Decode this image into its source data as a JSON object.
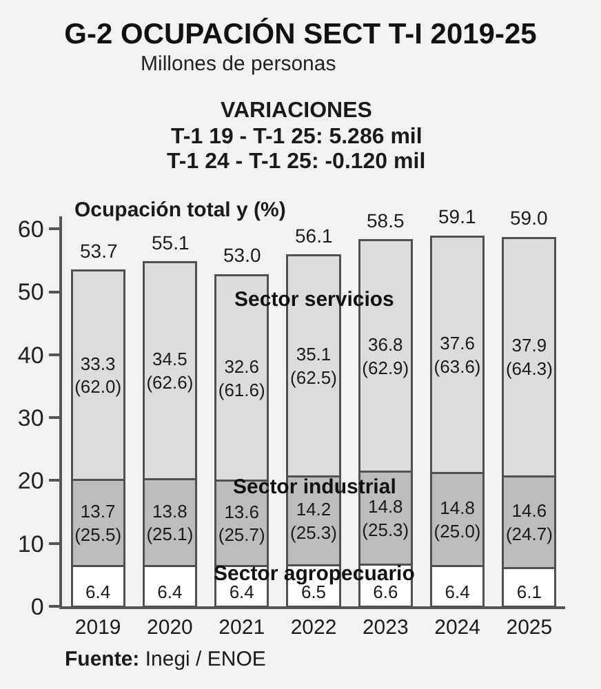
{
  "chart_data": {
    "type": "bar",
    "title": "G-2 OCUPACIÓN SECT T-I 2019-25",
    "subtitle": "Millones de personas",
    "categories": [
      "2019",
      "2020",
      "2021",
      "2022",
      "2023",
      "2024",
      "2025"
    ],
    "stacked": true,
    "series": [
      {
        "name": "Sector agropecuario",
        "color": "#ffffff",
        "values": [
          6.4,
          6.4,
          6.4,
          6.5,
          6.6,
          6.4,
          6.1
        ],
        "value_labels": [
          "6.4",
          "6.4",
          "6.4",
          "6.5",
          "6.6",
          "6.4",
          "6.1"
        ]
      },
      {
        "name": "Sector industrial",
        "color": "#bdbdbd",
        "values": [
          13.7,
          13.8,
          13.6,
          14.2,
          14.8,
          14.8,
          14.6
        ],
        "value_labels": [
          "13.7\n(25.5)",
          "13.8\n(25.1)",
          "13.6\n(25.7)",
          "14.2\n(25.3)",
          "14.8\n(25.3)",
          "14.8\n(25.0)",
          "14.6\n(24.7)"
        ]
      },
      {
        "name": "Sector servicios",
        "color": "#dcdcdc",
        "values": [
          33.3,
          34.5,
          32.6,
          35.1,
          36.8,
          37.6,
          37.9
        ],
        "value_labels": [
          "33.3\n(62.0)",
          "34.5\n(62.6)",
          "32.6\n(61.6)",
          "35.1\n(62.5)",
          "36.8\n(62.9)",
          "37.6\n(63.6)",
          "37.9\n(64.3)"
        ]
      }
    ],
    "ylim": [
      0,
      62
    ],
    "yticks": [
      0,
      10,
      20,
      30,
      40,
      50,
      60
    ],
    "grid": false,
    "legend": false,
    "annotations": [
      "Ocupación total y (%)",
      "VARIACIONES",
      "T-1 19 - T-1 25: 5.286 mil",
      "T-1 24 - T-1 25: -0.120 mil",
      "Fuente: Inegi / ENOE",
      {
        "text": "53.7",
        "x": "2019",
        "y": 53.7
      },
      {
        "text": "55.1",
        "x": "2020",
        "y": 55.1
      },
      {
        "text": "53.0",
        "x": "2021",
        "y": 53.0
      },
      {
        "text": "56.1",
        "x": "2022",
        "y": 56.1
      },
      {
        "text": "58.5",
        "x": "2023",
        "y": 58.5
      },
      {
        "text": "59.1",
        "x": "2024",
        "y": 59.1
      },
      {
        "text": "59.0",
        "x": "2025",
        "y": 59.0
      }
    ]
  }
}
